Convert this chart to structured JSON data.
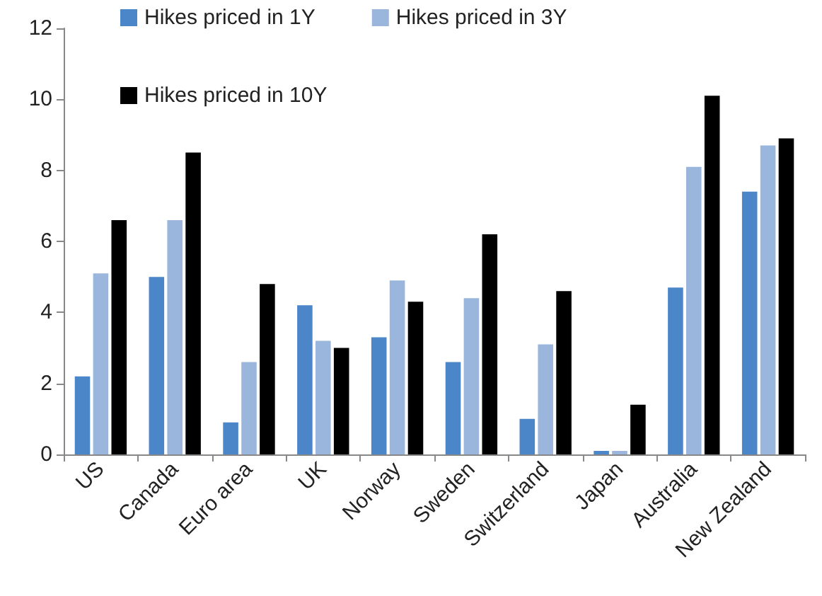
{
  "chart_data": {
    "type": "bar",
    "categories": [
      "US",
      "Canada",
      "Euro area",
      "UK",
      "Norway",
      "Sweden",
      "Switzerland",
      "Japan",
      "Australia",
      "New Zealand"
    ],
    "series": [
      {
        "name": "Hikes priced in 1Y",
        "color": "#4a86c8",
        "values": [
          2.2,
          5.0,
          0.9,
          4.2,
          3.3,
          2.6,
          1.0,
          0.1,
          4.7,
          7.4
        ]
      },
      {
        "name": "Hikes priced in 3Y",
        "color": "#9ab6dc",
        "values": [
          5.1,
          6.6,
          2.6,
          3.2,
          4.9,
          4.4,
          3.1,
          0.1,
          8.1,
          8.7
        ]
      },
      {
        "name": "Hikes priced in 10Y",
        "color": "#000000",
        "values": [
          6.6,
          8.5,
          4.8,
          3.0,
          4.3,
          6.2,
          4.6,
          1.4,
          10.1,
          8.9
        ]
      }
    ],
    "ylim": [
      0,
      12
    ],
    "yticks": [
      0,
      2,
      4,
      6,
      8,
      10,
      12
    ],
    "grid": false,
    "legend": "top left"
  }
}
